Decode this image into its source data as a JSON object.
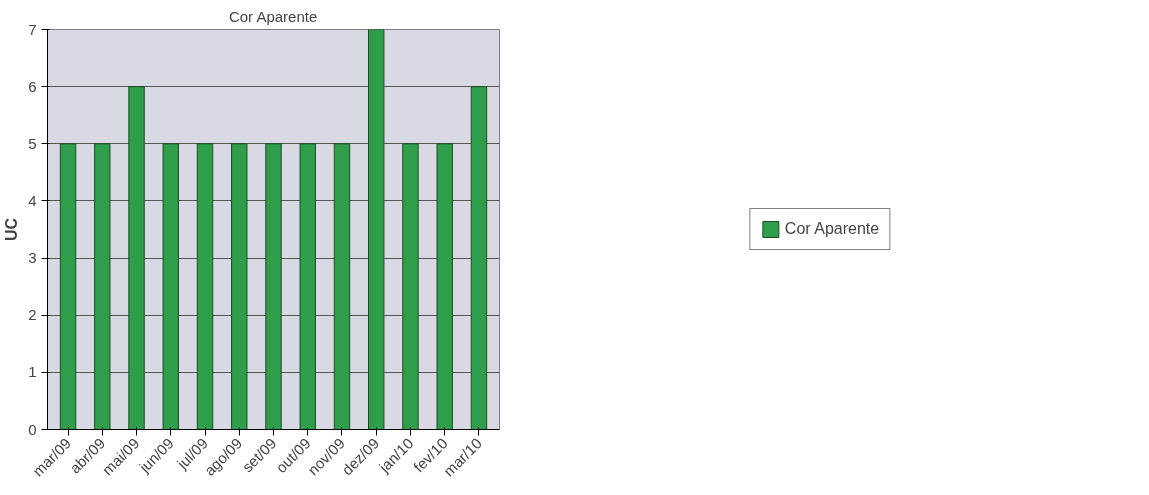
{
  "chart_data": {
    "type": "bar",
    "title": "Cor Aparente",
    "ylabel": "UC",
    "categories": [
      "mar/09",
      "abr/09",
      "mai/09",
      "jun/09",
      "jul/09",
      "ago/09",
      "set/09",
      "out/09",
      "nov/09",
      "dez/09",
      "jan/10",
      "fev/10",
      "mar/10"
    ],
    "series": [
      {
        "name": "Cor Aparente",
        "color": "#2e9e4a",
        "values": [
          5,
          5,
          6,
          5,
          5,
          5,
          5,
          5,
          5,
          7,
          5,
          5,
          6
        ]
      }
    ],
    "ylim": [
      0,
      7
    ],
    "yticks": [
      0,
      1,
      2,
      3,
      4,
      5,
      6,
      7
    ],
    "grid": "y",
    "legend": "right"
  }
}
